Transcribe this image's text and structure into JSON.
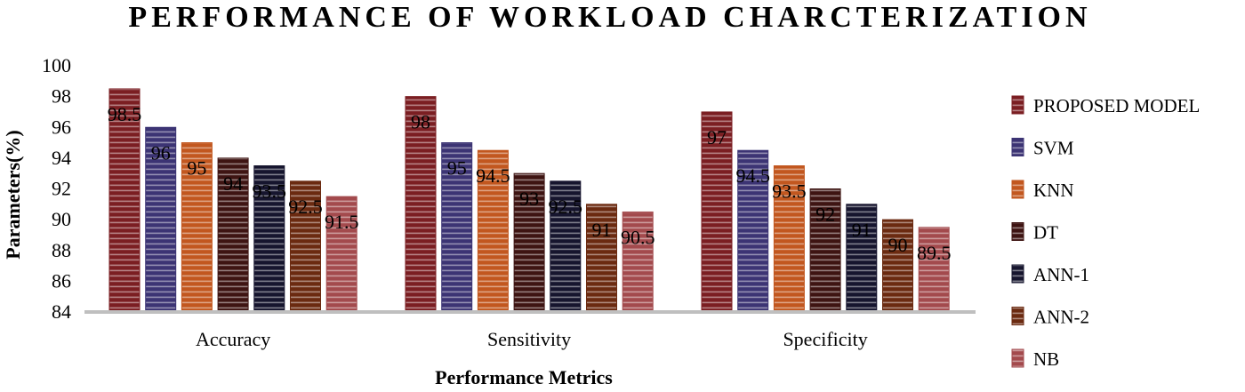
{
  "chart_data": {
    "type": "bar",
    "title": "PERFORMANCE OF WORKLOAD CHARCTERIZATION",
    "xlabel": "Performance Metrics",
    "ylabel": "Parameters(%)",
    "ylim": [
      84,
      100
    ],
    "yticks": [
      84,
      86,
      88,
      90,
      92,
      94,
      96,
      98,
      100
    ],
    "categories": [
      "Accuracy",
      "Sensitivity",
      "Specificity"
    ],
    "legend_position": "right",
    "grid": false,
    "series": [
      {
        "name": "PROPOSED MODEL",
        "color": "#7B1E22",
        "values": [
          98.5,
          98,
          97
        ]
      },
      {
        "name": "SVM",
        "color": "#3C3474",
        "values": [
          96,
          95,
          94.5
        ]
      },
      {
        "name": "KNN",
        "color": "#C2571F",
        "values": [
          95,
          94.5,
          93.5
        ]
      },
      {
        "name": "DT",
        "color": "#3E1412",
        "values": [
          94,
          93,
          92
        ]
      },
      {
        "name": "ANN-1",
        "color": "#16152E",
        "values": [
          93.5,
          92.5,
          91
        ]
      },
      {
        "name": "ANN-2",
        "color": "#6B2A10",
        "values": [
          92.5,
          91,
          90
        ]
      },
      {
        "name": "NB",
        "color": "#A34A4D",
        "values": [
          91.5,
          90.5,
          89.5
        ]
      }
    ]
  }
}
